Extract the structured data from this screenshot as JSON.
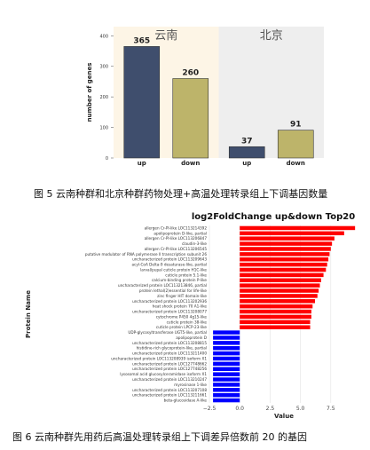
{
  "figures": [
    {
      "caption": "图 5  云南种群和北京种群药物处理+高温处理转录组上下调基因数量"
    },
    {
      "caption": "图 6  云南种群先用药后高温处理转录组上下调差异倍数前 20 的基因"
    }
  ],
  "colors": {
    "bar_up": "#3f4e6d",
    "bar_down": "#bdb46a",
    "panel_yunnan": "#fdf5e6",
    "panel_beijing": "#eeeeee",
    "hbar_up": "#ff0000",
    "hbar_down": "#0000ff"
  },
  "chart_data": [
    {
      "type": "bar",
      "ylabel": "number of genes",
      "xlabel": "",
      "ylim": [
        0,
        430
      ],
      "yticks": [
        0,
        100,
        200,
        300,
        400
      ],
      "panels": [
        {
          "label": "云南",
          "categories": [
            "up",
            "down"
          ],
          "values": [
            365,
            260
          ]
        },
        {
          "label": "北京",
          "categories": [
            "up",
            "down"
          ],
          "values": [
            37,
            91
          ]
        }
      ],
      "grid": false
    },
    {
      "type": "bar",
      "orientation": "horizontal",
      "title": "log2FoldChange up&down Top20",
      "xlabel": "Value",
      "ylabel": "Protein Name",
      "xlim": [
        -2.5,
        10
      ],
      "xticks": [
        -2.5,
        0.0,
        2.5,
        5.0,
        7.5
      ],
      "xtick_labels": [
        "−2.5",
        "0.0",
        "2.5",
        "5.0",
        "7.5"
      ],
      "grid": true,
      "categories": [
        "allergen Cr-PI-like LOC113214392",
        "apolipoprotein D-like, partial",
        "allergen Cr-PI-like LOC113206847",
        "claudin-3-like",
        "allergen Cr-PI-like LOC113206545",
        "putative modulator of RNA polymerase II transcription subunit 26",
        "uncharacterized protein LOC113209643",
        "acyl-CoA Delta-9 desaturase-like, partial",
        "larval/pupal cuticle protein H1C-like",
        "cuticle protein 5.1-like",
        "calcium-binding protein P-like",
        "uncharacterized protein LOC113213846, partial",
        "protein lethal(2)essential for life-like",
        "zinc finger HIT domain-like",
        "uncharacterized protein LOC113202936",
        "heat shock protein 70 A1-like",
        "uncharacterized protein LOC113208077",
        "cytochrome P450 4g15-like",
        "cuticle protein 38-like",
        "cuticle protein LPCP-23-like",
        "UDP-glycosyltransferase UGT5-like, partial",
        "apolipoprotein D",
        "uncharacterized protein LOC113208815",
        "histidine-rich glycoprotein-like, partial",
        "uncharacterized protein LOC113211400",
        "uncharacterized protein LOC113208939 isoform X1",
        "uncharacterized protein LOC127748662",
        "uncharacterized protein LOC127748256",
        "lysosomal acid glucosylceramidase isoform X1",
        "uncharacterized protein LOC113210247",
        "myrosinase 1-like",
        "uncharacterized protein LOC113207108",
        "uncharacterized protein LOC113211661",
        "beta-glucosidase A-like"
      ],
      "values": [
        9.5,
        8.6,
        7.8,
        7.6,
        7.5,
        7.4,
        7.3,
        7.2,
        7.1,
        6.9,
        6.7,
        6.6,
        6.5,
        6.4,
        6.2,
        6.0,
        5.9,
        5.9,
        5.8,
        5.8,
        -2.2,
        -2.2,
        -2.2,
        -2.2,
        -2.2,
        -2.2,
        -2.2,
        -2.2,
        -2.2,
        -2.2,
        -2.2,
        -2.2,
        -2.2,
        -2.2
      ]
    }
  ]
}
